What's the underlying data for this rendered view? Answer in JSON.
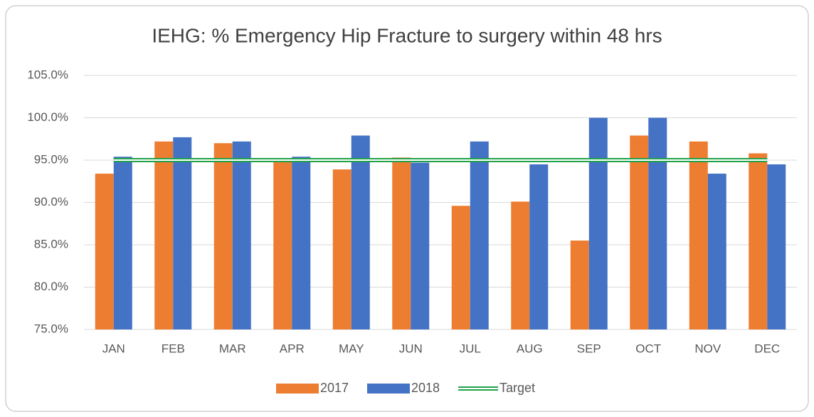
{
  "chart_data": {
    "type": "bar",
    "title": "IEHG: % Emergency Hip Fracture to surgery within 48 hrs",
    "categories": [
      "JAN",
      "FEB",
      "MAR",
      "APR",
      "MAY",
      "JUN",
      "JUL",
      "AUG",
      "SEP",
      "OCT",
      "NOV",
      "DEC"
    ],
    "series": [
      {
        "name": "2017",
        "color": "#ed7d31",
        "type": "bar",
        "values": [
          93.4,
          97.2,
          97.0,
          94.8,
          93.9,
          95.3,
          89.6,
          90.1,
          85.5,
          97.9,
          97.2,
          95.8
        ]
      },
      {
        "name": "2018",
        "color": "#4472c4",
        "type": "bar",
        "values": [
          95.4,
          97.7,
          97.2,
          95.4,
          97.9,
          94.7,
          97.2,
          94.5,
          100,
          100,
          93.4,
          94.5
        ]
      },
      {
        "name": "Target",
        "color": "#22a34a",
        "type": "line",
        "values": [
          95,
          95,
          95,
          95,
          95,
          95,
          95,
          95,
          95,
          95,
          95,
          95
        ]
      }
    ],
    "ylim": [
      75,
      105
    ],
    "yticks": [
      {
        "value": 75,
        "label": "75.0%"
      },
      {
        "value": 80,
        "label": "80.0%"
      },
      {
        "value": 85,
        "label": "85.0%"
      },
      {
        "value": 90,
        "label": "90.0%"
      },
      {
        "value": 95,
        "label": "95.0%"
      },
      {
        "value": 100,
        "label": "100.0%"
      },
      {
        "value": 105,
        "label": "105.0%"
      }
    ],
    "grid": true,
    "legend": "bottom"
  }
}
